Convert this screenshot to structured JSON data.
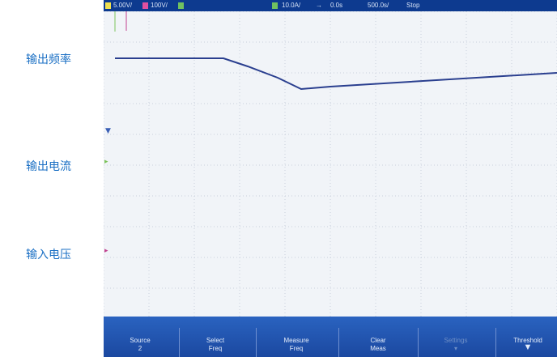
{
  "labels": {
    "output_freq": "输出频率",
    "output_current": "输出电流",
    "input_voltage": "输入电压"
  },
  "status": {
    "ch1_scale": "5.00V/",
    "ch2_scale": "100V/",
    "ch4_scale": "10.0A/",
    "arrow": "→",
    "time_offset": "0.0s",
    "time_scale": "500.0s/",
    "run_state": "Stop"
  },
  "softkeys": {
    "source": {
      "line1": "Source",
      "line2": "2"
    },
    "select": {
      "line1": "Select",
      "line2": "Freq"
    },
    "measure": {
      "line1": "Measure",
      "line2": "Freq"
    },
    "clear": {
      "line1": "Clear",
      "line2": "Meas"
    },
    "settings": {
      "line1": "Settings",
      "line2": ""
    },
    "threshold": {
      "line1": "Threshold",
      "line2": ""
    }
  },
  "colors": {
    "freq_trace": "#2a3f8f",
    "current_trace": "#7cc35a",
    "voltage_trace": "#c2418f",
    "label_text": "#1a6fc4",
    "status_bg": "#0d3a8f",
    "softkey_bg": "#2062bd"
  }
}
